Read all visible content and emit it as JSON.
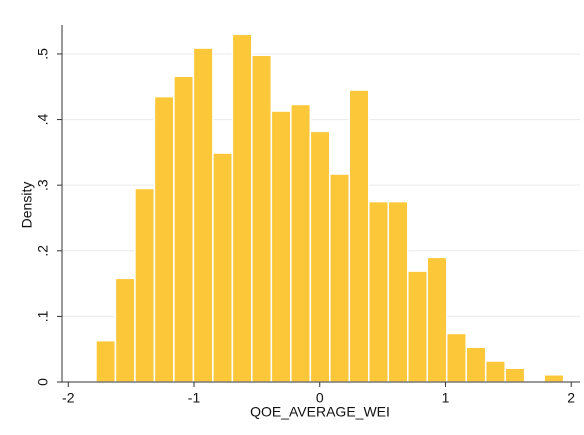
{
  "chart_data": {
    "type": "histogram",
    "xlabel": "QOE_AVERAGE_WEI",
    "ylabel": "Density",
    "bins": [
      -1.78,
      -1.625,
      -1.47,
      -1.315,
      -1.16,
      -1.005,
      -0.85,
      -0.695,
      -0.54,
      -0.385,
      -0.23,
      -0.075,
      0.08,
      0.235,
      0.39,
      0.545,
      0.7,
      0.855,
      1.01,
      1.165,
      1.32,
      1.475,
      1.63,
      1.785,
      1.94
    ],
    "values": [
      0.063,
      0.158,
      0.295,
      0.435,
      0.466,
      0.509,
      0.349,
      0.53,
      0.498,
      0.413,
      0.423,
      0.382,
      0.317,
      0.445,
      0.275,
      0.275,
      0.169,
      0.19,
      0.074,
      0.053,
      0.032,
      0.021,
      0,
      0.011
    ],
    "color": "#fcc83a",
    "xlim": [
      -2.05,
      2.07
    ],
    "xticks": [
      -2,
      -1,
      0,
      1,
      2
    ],
    "ylim": [
      0,
      0.567
    ],
    "yticks": [
      0,
      {
        "value": 0.1,
        "label": ".1"
      },
      {
        "value": 0.2,
        "label": ".2"
      },
      {
        "value": 0.3,
        "label": ".3"
      },
      {
        "value": 0.4,
        "label": ".4"
      },
      {
        "value": 0.5,
        "label": ".5"
      }
    ],
    "grid": true
  }
}
